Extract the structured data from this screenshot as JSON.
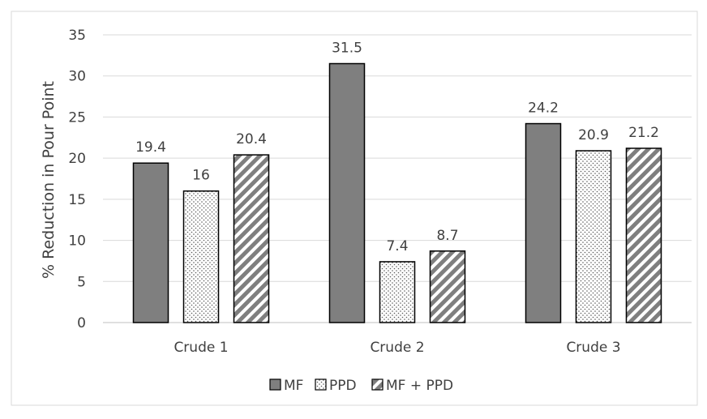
{
  "chart_data": {
    "type": "bar",
    "categories": [
      "Crude 1",
      "Crude 2",
      "Crude 3"
    ],
    "series": [
      {
        "name": "MF",
        "values": [
          19.4,
          31.5,
          24.2
        ],
        "labels": [
          "19.4",
          "31.5",
          "24.2"
        ],
        "pattern": "solid",
        "color": "#7f7f7f"
      },
      {
        "name": "PPD",
        "values": [
          16,
          7.4,
          20.9
        ],
        "labels": [
          "16",
          "7.4",
          "20.9"
        ],
        "pattern": "dots",
        "color": "#595959"
      },
      {
        "name": "MF + PPD",
        "values": [
          20.4,
          8.7,
          21.2
        ],
        "labels": [
          "20.4",
          "8.7",
          "21.2"
        ],
        "pattern": "diagonal-stripes",
        "color": "#7f7f7f"
      }
    ],
    "ylabel": "% Reduction in Pour Point",
    "xlabel": "",
    "ylim": [
      0,
      35
    ],
    "yticks": [
      0,
      5,
      10,
      15,
      20,
      25,
      30,
      35
    ],
    "grid": true,
    "legend_position": "bottom"
  }
}
